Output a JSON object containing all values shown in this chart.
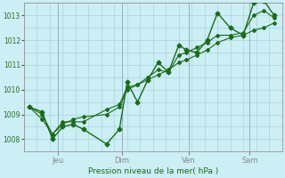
{
  "background_color": "#cceef5",
  "grid_color": "#aad4dc",
  "line_color": "#1a6b1a",
  "xlabel": "Pression niveau de la mer( hPa )",
  "ylim": [
    1007.5,
    1013.5
  ],
  "yticks": [
    1008,
    1009,
    1010,
    1011,
    1012,
    1013
  ],
  "day_positions": [
    0.13,
    0.38,
    0.64,
    0.875
  ],
  "day_labels": [
    "Jeu",
    "Dim",
    "Ven",
    "Sam"
  ],
  "xlim": [
    0.0,
    1.0
  ],
  "series": [
    {
      "x": [
        0.02,
        0.07,
        0.11,
        0.15,
        0.19,
        0.23,
        0.32,
        0.37,
        0.4,
        0.44,
        0.48,
        0.52,
        0.56,
        0.6,
        0.63,
        0.67,
        0.71,
        0.75,
        0.8,
        0.85,
        0.89,
        0.93,
        0.97
      ],
      "y": [
        1009.3,
        1009.1,
        1008.0,
        1008.5,
        1008.6,
        1008.4,
        1007.8,
        1008.4,
        1010.3,
        1009.5,
        1010.4,
        1011.1,
        1010.7,
        1011.8,
        1011.6,
        1011.5,
        1012.0,
        1013.1,
        1012.5,
        1012.2,
        1013.5,
        1013.6,
        1013.0
      ],
      "marker": "D",
      "markersize": 2.5,
      "linewidth": 1.0
    },
    {
      "x": [
        0.02,
        0.07,
        0.11,
        0.15,
        0.19,
        0.23,
        0.32,
        0.37,
        0.4,
        0.44,
        0.48,
        0.52,
        0.56,
        0.6,
        0.63,
        0.67,
        0.71,
        0.75,
        0.8,
        0.85,
        0.89,
        0.93,
        0.97
      ],
      "y": [
        1009.3,
        1008.8,
        1008.2,
        1008.6,
        1008.8,
        1008.9,
        1009.0,
        1009.3,
        1010.0,
        1010.2,
        1010.4,
        1010.6,
        1010.8,
        1011.1,
        1011.2,
        1011.4,
        1011.6,
        1011.9,
        1012.1,
        1012.2,
        1012.4,
        1012.5,
        1012.7
      ],
      "marker": "D",
      "markersize": 2.0,
      "linewidth": 0.8
    },
    {
      "x": [
        0.02,
        0.07,
        0.11,
        0.15,
        0.19,
        0.23,
        0.32,
        0.37,
        0.4,
        0.44,
        0.48,
        0.52,
        0.56,
        0.6,
        0.63,
        0.67,
        0.71,
        0.75,
        0.8,
        0.85,
        0.89,
        0.93,
        0.97
      ],
      "y": [
        1009.3,
        1009.0,
        1008.2,
        1008.7,
        1008.7,
        1008.7,
        1009.2,
        1009.4,
        1010.1,
        1010.2,
        1010.5,
        1010.8,
        1010.7,
        1011.4,
        1011.5,
        1011.7,
        1011.9,
        1012.2,
        1012.2,
        1012.3,
        1013.0,
        1013.2,
        1012.9
      ],
      "marker": "D",
      "markersize": 2.0,
      "linewidth": 0.8
    }
  ]
}
